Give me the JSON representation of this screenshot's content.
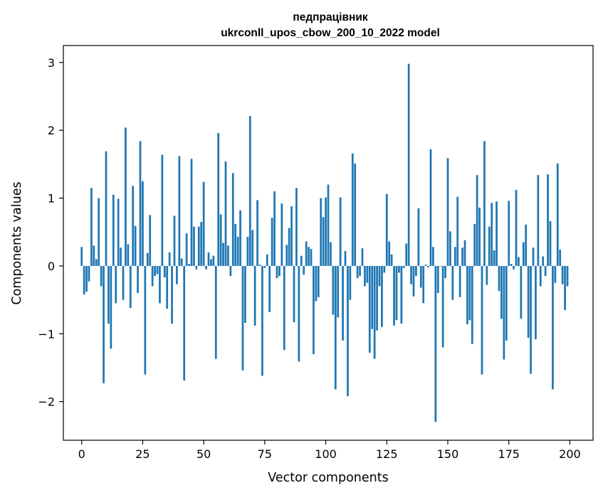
{
  "chart_data": {
    "type": "bar",
    "title_line1": "педпрацівник",
    "title_line2": "ukrconll_upos_cbow_200_10_2022 model",
    "xlabel": "Vector components",
    "ylabel": "Components values",
    "xlim": [
      -7.5,
      209.5
    ],
    "ylim": [
      -2.57,
      3.25
    ],
    "xticks": [
      0,
      25,
      50,
      75,
      100,
      125,
      150,
      175,
      200
    ],
    "xtick_labels": [
      "0",
      "25",
      "50",
      "75",
      "100",
      "125",
      "150",
      "175",
      "200"
    ],
    "yticks": [
      -2,
      -1,
      0,
      1,
      2,
      3
    ],
    "ytick_labels": [
      "−2",
      "−1",
      "0",
      "1",
      "2",
      "3"
    ],
    "bar_color": "#1f77b4",
    "grid": false,
    "values": [
      0.28,
      -0.42,
      -0.38,
      -0.23,
      1.15,
      0.3,
      0.1,
      1.0,
      -0.3,
      -1.73,
      1.69,
      -0.85,
      -1.22,
      1.05,
      -0.55,
      0.99,
      0.27,
      -0.5,
      2.04,
      0.32,
      -0.62,
      1.18,
      0.59,
      -0.4,
      1.84,
      1.25,
      -1.6,
      0.19,
      0.75,
      -0.3,
      -0.15,
      -0.12,
      -0.55,
      1.64,
      -0.17,
      -0.63,
      0.2,
      -0.85,
      0.74,
      -0.27,
      1.62,
      0.11,
      -1.69,
      0.48,
      0.03,
      1.58,
      0.58,
      -0.05,
      0.58,
      0.65,
      1.24,
      -0.05,
      0.2,
      0.1,
      0.15,
      -1.37,
      1.96,
      0.76,
      0.34,
      1.54,
      0.3,
      -0.15,
      1.37,
      0.62,
      0.43,
      0.82,
      -1.54,
      -0.84,
      0.43,
      2.21,
      0.53,
      -0.88,
      0.97,
      0.02,
      -1.62,
      -0.03,
      0.17,
      -0.68,
      0.71,
      1.1,
      -0.18,
      -0.15,
      0.92,
      -1.24,
      0.31,
      0.56,
      0.88,
      -0.83,
      1.15,
      -1.41,
      0.15,
      -0.13,
      0.36,
      0.28,
      0.25,
      -1.3,
      -0.52,
      -0.46,
      1.0,
      0.72,
      1.01,
      1.2,
      0.35,
      -0.72,
      -1.82,
      -0.76,
      1.01,
      -1.1,
      0.22,
      -1.92,
      -0.5,
      1.66,
      1.51,
      -0.18,
      -0.15,
      0.26,
      -0.3,
      -0.25,
      -1.28,
      -0.93,
      -1.37,
      -0.95,
      -0.3,
      -0.9,
      -0.1,
      1.06,
      0.36,
      0.17,
      -0.88,
      -0.8,
      -0.1,
      -0.85,
      -0.03,
      0.33,
      2.98,
      -0.27,
      -0.45,
      -0.15,
      0.85,
      -0.32,
      -0.55,
      0.02,
      -0.02,
      1.72,
      0.28,
      -2.3,
      -0.4,
      0.0,
      -1.2,
      -0.18,
      1.59,
      0.51,
      -0.5,
      0.28,
      1.02,
      -0.46,
      0.27,
      0.38,
      -0.86,
      -0.8,
      -1.15,
      0.62,
      1.34,
      0.86,
      -1.6,
      1.84,
      -0.28,
      0.58,
      0.93,
      0.23,
      0.95,
      -0.37,
      -0.78,
      -1.38,
      -1.1,
      0.96,
      0.03,
      -0.05,
      1.12,
      0.13,
      -0.78,
      0.35,
      0.61,
      -1.06,
      -1.59,
      0.27,
      -1.08,
      1.34,
      -0.3,
      0.14,
      -0.15,
      1.35,
      0.66,
      -1.82,
      -0.25,
      1.51,
      0.24,
      -0.27,
      -0.65,
      -0.3
    ]
  }
}
